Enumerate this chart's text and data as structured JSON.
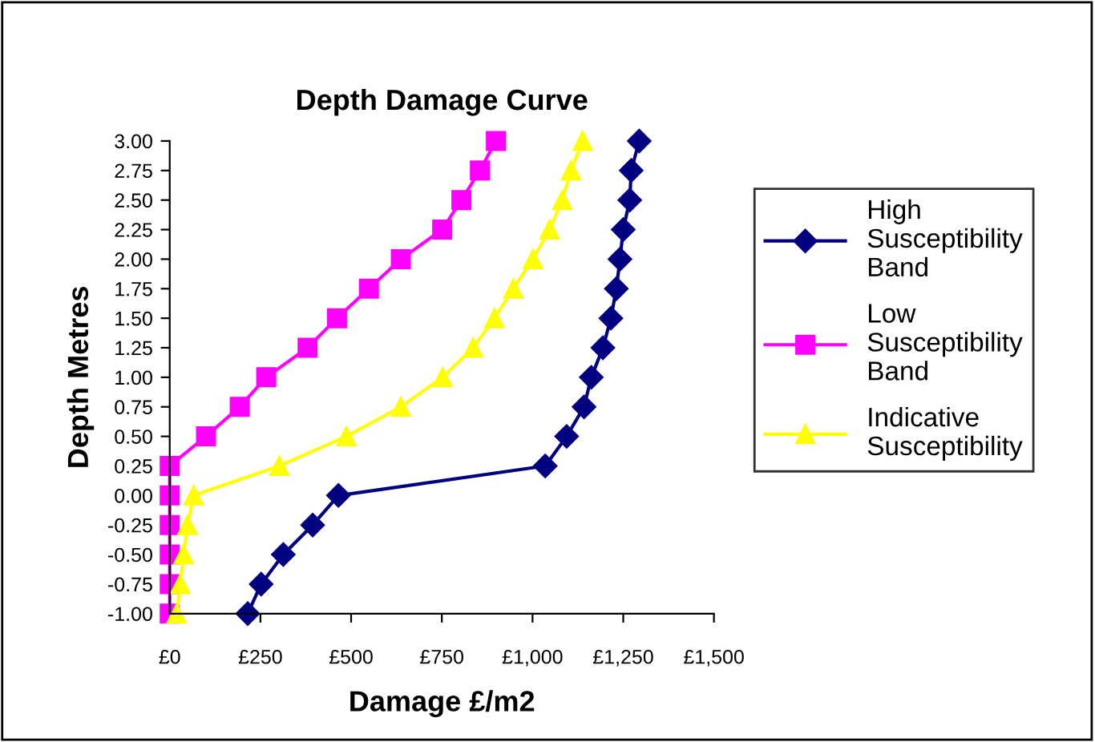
{
  "chart_data": {
    "type": "line",
    "title": "Depth Damage Curve",
    "xlabel": "Damage £/m2",
    "ylabel": "Depth Metres",
    "series": [
      {
        "name": "High Susceptibility Band",
        "color": "#000080",
        "marker": "diamond",
        "x": [
          215,
          252,
          313,
          394,
          465,
          1035,
          1094,
          1142,
          1162,
          1194,
          1216,
          1231,
          1241,
          1250,
          1268,
          1272,
          1294
        ],
        "values": [
          -1.0,
          -0.75,
          -0.5,
          -0.25,
          0.0,
          0.25,
          0.5,
          0.75,
          1.0,
          1.25,
          1.5,
          1.75,
          2.0,
          2.25,
          2.5,
          2.75,
          3.0
        ]
      },
      {
        "name": "Low Susceptibility Band",
        "color": "#ff00ff",
        "marker": "square",
        "x": [
          0,
          0,
          0,
          0,
          0,
          0,
          100,
          193,
          266,
          380,
          461,
          549,
          637,
          751,
          804,
          855,
          899
        ],
        "values": [
          -1.0,
          -0.75,
          -0.5,
          -0.25,
          0.0,
          0.25,
          0.5,
          0.75,
          1.0,
          1.25,
          1.5,
          1.75,
          2.0,
          2.25,
          2.5,
          2.75,
          3.0
        ]
      },
      {
        "name": "Indicative Susceptibility",
        "color": "#ffff00",
        "marker": "triangle",
        "x": [
          19,
          29,
          38,
          49,
          66,
          302,
          487,
          637,
          752,
          836,
          895,
          947,
          1001,
          1047,
          1082,
          1106,
          1138
        ],
        "values": [
          -1.0,
          -0.75,
          -0.5,
          -0.25,
          0.0,
          0.25,
          0.5,
          0.75,
          1.0,
          1.25,
          1.5,
          1.75,
          2.0,
          2.25,
          2.5,
          2.75,
          3.0
        ]
      }
    ],
    "xlim": [
      0,
      1500
    ],
    "xticks": [
      {
        "value": 0,
        "label": "£0"
      },
      {
        "value": 250,
        "label": "£250"
      },
      {
        "value": 500,
        "label": "£500"
      },
      {
        "value": 750,
        "label": "£750"
      },
      {
        "value": 1000,
        "label": "£1,000"
      },
      {
        "value": 1250,
        "label": "£1,250"
      },
      {
        "value": 1500,
        "label": "£1,500"
      }
    ],
    "ylim": [
      -1.0,
      3.0
    ],
    "yticks": [
      {
        "value": -1.0,
        "label": "-1.00"
      },
      {
        "value": -0.75,
        "label": "-0.75"
      },
      {
        "value": -0.5,
        "label": "-0.50"
      },
      {
        "value": -0.25,
        "label": "-0.25"
      },
      {
        "value": 0.0,
        "label": "0.00"
      },
      {
        "value": 0.25,
        "label": "0.25"
      },
      {
        "value": 0.5,
        "label": "0.50"
      },
      {
        "value": 0.75,
        "label": "0.75"
      },
      {
        "value": 1.0,
        "label": "1.00"
      },
      {
        "value": 1.25,
        "label": "1.25"
      },
      {
        "value": 1.5,
        "label": "1.50"
      },
      {
        "value": 1.75,
        "label": "1.75"
      },
      {
        "value": 2.0,
        "label": "2.00"
      },
      {
        "value": 2.25,
        "label": "2.25"
      },
      {
        "value": 2.5,
        "label": "2.50"
      },
      {
        "value": 2.75,
        "label": "2.75"
      },
      {
        "value": 3.0,
        "label": "3.00"
      }
    ],
    "legend": "right",
    "grid": false,
    "line_style": "solid"
  }
}
